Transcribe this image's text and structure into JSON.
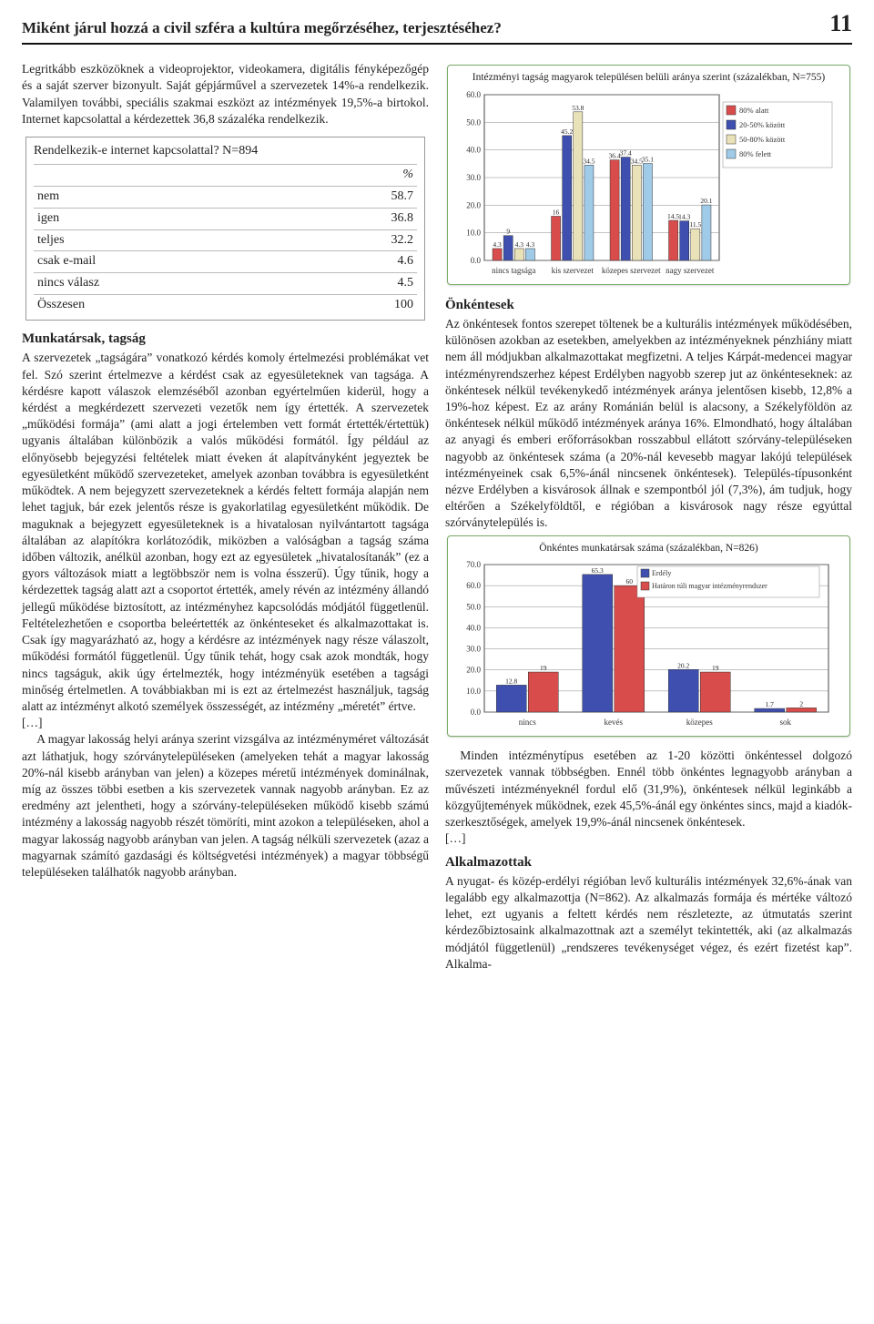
{
  "header": {
    "running_head": "Miként járul hozzá a civil szféra a kultúra megőrzéséhez, terjesztéséhez?",
    "page_number": "11"
  },
  "left": {
    "para1": "Legritkább eszközöknek a videoprojektor, videokamera, digitális fényképezőgép és a saját szerver bizonyult. Saját gépjárművel a szervezetek 14%-a rendelkezik. Valamilyen további, speciális szakmai eszközt az intézmények 19,5%-a birtokol. Internet kapcsolattal a kérdezettek 36,8 százaléka rendelkezik.",
    "table1": {
      "title": "Rendelkezik-e internet kapcsolattal? N=894",
      "pct_label": "%",
      "rows": [
        {
          "label": "nem",
          "value": "58.7"
        },
        {
          "label": "igen",
          "value": "36.8"
        },
        {
          "label": "teljes",
          "value": "32.2"
        },
        {
          "label": "csak e-mail",
          "value": "4.6"
        },
        {
          "label": "nincs válasz",
          "value": "4.5"
        },
        {
          "label": "Összesen",
          "value": "100"
        }
      ]
    },
    "sec1_title": "Munkatársak, tagság",
    "para2": "A szervezetek „tagságára” vonatkozó kérdés komoly értelmezési problémákat vet fel. Szó szerint értelmezve a kérdést csak az egyesületeknek van tagsága. A kérdésre kapott válaszok elemzéséből azonban egyértelműen kiderül, hogy a kérdést a megkérdezett szervezeti vezetők nem így értették. A szervezetek „működési formája” (ami alatt a jogi értelemben vett formát értették/értettük) ugyanis általában különbözik a valós működési formától. Így például az előnyösebb bejegyzési feltételek miatt éveken át alapítványként jegyeztek be egyesületként működő szervezeteket, amelyek azonban továbbra is egyesületként működtek. A nem bejegyzett szervezeteknek a kérdés feltett formája alapján nem lehet tagjuk, bár ezek jelentős része is gyakorlatilag egyesületként működik. De maguknak a bejegyzett egyesületeknek is a hivatalosan nyilvántartott tagsága általában az alapítókra korlátozódik, miközben a valóságban a tagság száma időben változik, anélkül azonban, hogy ezt az egyesületek „hivatalosítanák” (ez a gyors változások miatt a legtöbbször nem is volna ésszerű). Úgy tűnik, hogy a kérdezettek tagság alatt azt a csoportot értették, amely révén az intézmény állandó jellegű működése biztosított, az intézményhez kapcsolódás módjától függetlenül. Feltételezhetően e csoportba beleértették az önkénteseket és alkalmazottakat is. Csak így magyarázható az, hogy a kérdésre az intézmények nagy része válaszolt, működési formától függetlenül. Úgy tűnik tehát, hogy csak azok mondták, hogy nincs tagságuk, akik úgy értelmezték, hogy intézményük esetében a tagsági minőség értelmetlen. A továbbiakban mi is ezt az értelmezést használjuk, tagság alatt az intézményt alkotó személyek összességét, az intézmény „méretét” értve.",
    "ellipsis1": "[…]",
    "para3": "A magyar lakosság helyi aránya szerint vizsgálva az intézményméret változását azt láthatjuk, hogy szórványtelepüléseken (amelyeken tehát a magyar lakosság 20%-nál kisebb arányban van jelen) a közepes méretű intézmények dominálnak, míg az összes többi esetben a kis szervezetek vannak nagyobb arányban. Ez az eredmény azt jelentheti, hogy a szórvány-településeken működő kisebb számú intézmény a lakosság nagyobb részét tömöríti, mint azokon a településeken, ahol a magyar lakosság nagyobb arányban van jelen. A tagság nélküli szervezetek (azaz a magyarnak számító gazdasági és költségvetési intézmények) a magyar többségű településeken találhatók nagyobb arányban."
  },
  "right": {
    "chart1": {
      "title": "Intézményi tagság magyarok településen belüli aránya szerint (százalékban, N=755)",
      "categories": [
        "nincs tagsága",
        "kis szervezet",
        "közepes szervezet",
        "nagy szervezet"
      ],
      "series_labels": [
        "80% alatt",
        "20-50% között",
        "50-80% között",
        "80% felett"
      ],
      "series_colors": [
        "#d84c4c",
        "#3f4fb0",
        "#e9e2b8",
        "#9fcbe8"
      ],
      "values": [
        [
          4.3,
          16.0,
          36.4,
          14.5
        ],
        [
          9.0,
          45.2,
          37.4,
          14.3
        ],
        [
          4.3,
          53.8,
          34.5,
          11.5
        ],
        [
          4.3,
          34.5,
          35.1,
          20.1
        ]
      ],
      "ylim": [
        0,
        60
      ],
      "ytick_step": 10,
      "grid_color": "#888",
      "bg_color": "#ffffff",
      "plot_border": "#444"
    },
    "sec1_title": "Önkéntesek",
    "para1": "Az önkéntesek fontos szerepet töltenek be a kulturális intézmények működésében, különösen azokban az esetekben, amelyekben az intézményeknek pénzhiány miatt nem áll módjukban alkalmazottakat megfizetni. A teljes Kárpát-medencei magyar intézményrendszerhez képest Erdélyben nagyobb szerep jut az önkénteseknek: az önkéntesek nélkül tevékenykedő intézmények aránya jelentősen kisebb, 12,8% a 19%-hoz képest. Ez az arány Románián belül is alacsony, a Székelyföldön az önkéntesek nélkül működő intézmények aránya 16%. Elmondható, hogy általában az anyagi és emberi erőforrásokban rosszabbul ellátott szórvány-településeken nagyobb az önkéntesek száma (a 20%-nál kevesebb magyar lakójú települések intézményeinek csak 6,5%-ánál nincsenek önkéntesek). Település-típusonként nézve Erdélyben a kisvárosok állnak e szempontból jól (7,3%), ám tudjuk, hogy eltérően a Székelyföldtől, e régióban a kisvárosok nagy része egyúttal szórványtelepülés is.",
    "chart2": {
      "title": "Önkéntes munkatársak száma (százalékban, N=826)",
      "categories": [
        "nincs",
        "kevés",
        "közepes",
        "sok"
      ],
      "series_labels": [
        "Erdély",
        "Határon túli magyar intézményrendszer"
      ],
      "series_colors": [
        "#3f4fb0",
        "#d84c4c"
      ],
      "values": [
        [
          12.8,
          65.3,
          20.2,
          1.7
        ],
        [
          19.0,
          60.0,
          19.0,
          2.0
        ]
      ],
      "ylim": [
        0,
        70
      ],
      "ytick_step": 10,
      "grid_color": "#888",
      "bg_color": "#ffffff",
      "plot_border": "#444"
    },
    "para2": "Minden intézménytípus esetében az 1-20 közötti önkéntessel dolgozó szervezetek vannak többségben. Ennél több önkéntes legnagyobb arányban a művészeti intézményeknél fordul elő (31,9%), önkéntesek nélkül leginkább a közgyűjtemények működnek, ezek 45,5%-ánál egy önkéntes sincs, majd a kiadók-szerkesztőségek, amelyek 19,9%-ánál nincsenek önkéntesek.",
    "ellipsis1": "[…]",
    "sec2_title": "Alkalmazottak",
    "para3": "A nyugat- és közép-erdélyi régióban levő kulturális intézmények 32,6%-ának van legalább egy alkalmazottja (N=862). Az alkalmazás formája és mértéke változó lehet, ezt ugyanis a feltett kérdés nem részletezte, az útmutatás szerint kérdezőbiztosaink alkalmazottnak azt a személyt tekintették, aki (az alkalmazás módjától függetlenül) „rendszeres tevékenységet végez, és ezért fizetést kap”. Alkalma-"
  }
}
